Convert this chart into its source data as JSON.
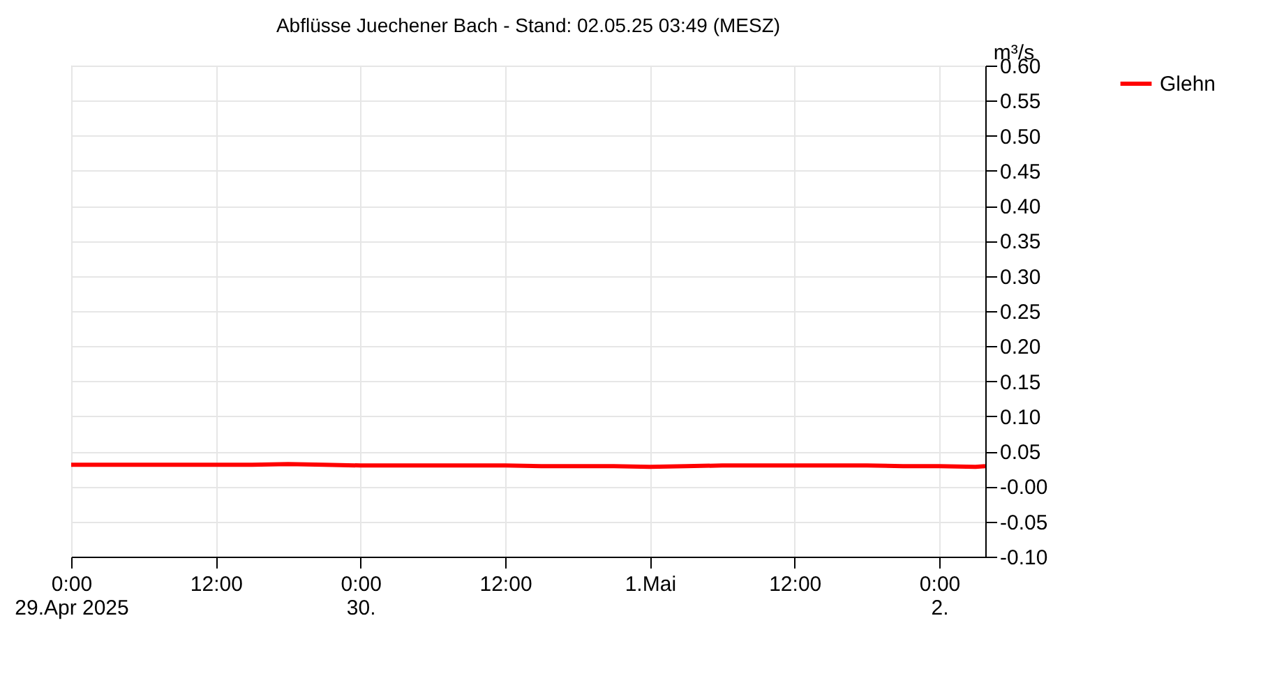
{
  "chart_data": {
    "type": "line",
    "title": "Abflüsse Juechener Bach - Stand: 02.05.25 03:49 (MESZ)",
    "ylabel": "m³/s",
    "x": [
      "2025-04-29T00:00",
      "2025-04-29T03:00",
      "2025-04-29T06:00",
      "2025-04-29T09:00",
      "2025-04-29T12:00",
      "2025-04-29T15:00",
      "2025-04-29T18:00",
      "2025-04-29T21:00",
      "2025-04-30T00:00",
      "2025-04-30T03:00",
      "2025-04-30T06:00",
      "2025-04-30T09:00",
      "2025-04-30T12:00",
      "2025-04-30T15:00",
      "2025-04-30T18:00",
      "2025-04-30T21:00",
      "2025-05-01T00:00",
      "2025-05-01T03:00",
      "2025-05-01T06:00",
      "2025-05-01T09:00",
      "2025-05-01T12:00",
      "2025-05-01T15:00",
      "2025-05-01T18:00",
      "2025-05-01T21:00",
      "2025-05-02T00:00",
      "2025-05-02T03:00",
      "2025-05-02T03:49"
    ],
    "series": [
      {
        "name": "Glehn",
        "color": "#ff0000",
        "values": [
          0.031,
          0.031,
          0.031,
          0.031,
          0.031,
          0.031,
          0.032,
          0.031,
          0.03,
          0.03,
          0.03,
          0.03,
          0.03,
          0.029,
          0.029,
          0.029,
          0.028,
          0.029,
          0.03,
          0.03,
          0.03,
          0.03,
          0.03,
          0.029,
          0.029,
          0.028,
          0.029
        ]
      }
    ],
    "xlim": [
      "2025-04-29T00:00",
      "2025-05-02T03:49"
    ],
    "xticks": [
      {
        "value": "2025-04-29T00:00",
        "label": "0:00\n29.Apr 2025"
      },
      {
        "value": "2025-04-29T12:00",
        "label": "12:00"
      },
      {
        "value": "2025-04-30T00:00",
        "label": "0:00\n30."
      },
      {
        "value": "2025-04-30T12:00",
        "label": "12:00"
      },
      {
        "value": "2025-05-01T00:00",
        "label": "1.Mai"
      },
      {
        "value": "2025-05-01T12:00",
        "label": "12:00"
      },
      {
        "value": "2025-05-02T00:00",
        "label": "0:00\n2."
      }
    ],
    "ylim": [
      -0.1,
      0.6
    ],
    "yticks": [
      {
        "value": -0.1,
        "label": "-0.10"
      },
      {
        "value": -0.05,
        "label": "-0.05"
      },
      {
        "value": 0,
        "label": "-0.00"
      },
      {
        "value": 0.05,
        "label": "0.05"
      },
      {
        "value": 0.1,
        "label": "0.10"
      },
      {
        "value": 0.15,
        "label": "0.15"
      },
      {
        "value": 0.2,
        "label": "0.20"
      },
      {
        "value": 0.25,
        "label": "0.25"
      },
      {
        "value": 0.3,
        "label": "0.30"
      },
      {
        "value": 0.35,
        "label": "0.35"
      },
      {
        "value": 0.4,
        "label": "0.40"
      },
      {
        "value": 0.45,
        "label": "0.45"
      },
      {
        "value": 0.5,
        "label": "0.50"
      },
      {
        "value": 0.55,
        "label": "0.55"
      },
      {
        "value": 0.6,
        "label": "0.60"
      }
    ],
    "grid": true,
    "legend": "top right",
    "marker": "none",
    "line_style": "solid"
  }
}
